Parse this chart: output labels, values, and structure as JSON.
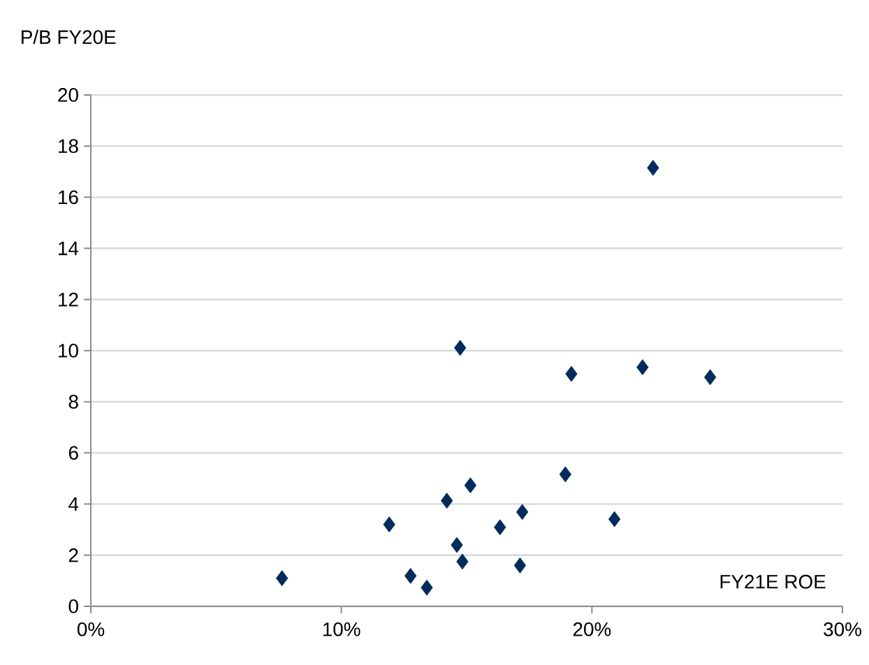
{
  "chart_data": {
    "type": "scatter",
    "xlabel": "FY21E ROE",
    "ylabel": "P/B FY20E",
    "x": [
      7.63,
      11.91,
      12.76,
      13.41,
      14.21,
      14.61,
      14.83,
      14.74,
      15.15,
      16.33,
      17.22,
      17.13,
      18.94,
      19.18,
      20.9,
      22.02,
      22.44,
      24.72
    ],
    "values": [
      1.1,
      3.2,
      1.19,
      0.73,
      4.13,
      2.4,
      1.75,
      10.11,
      4.73,
      3.09,
      3.69,
      1.6,
      5.16,
      9.09,
      3.41,
      9.35,
      17.15,
      8.96
    ],
    "color": "#032b5c",
    "marker": "diamond",
    "grid": "y",
    "xlim": [
      0,
      30
    ],
    "ylim": [
      0,
      20
    ],
    "xticks": [
      {
        "value": 0,
        "label": "0%"
      },
      {
        "value": 10,
        "label": "10%"
      },
      {
        "value": 20,
        "label": "20%"
      },
      {
        "value": 30,
        "label": "30%"
      }
    ],
    "yticks": [
      0,
      2,
      4,
      6,
      8,
      10,
      12,
      14,
      16,
      18,
      20
    ]
  }
}
